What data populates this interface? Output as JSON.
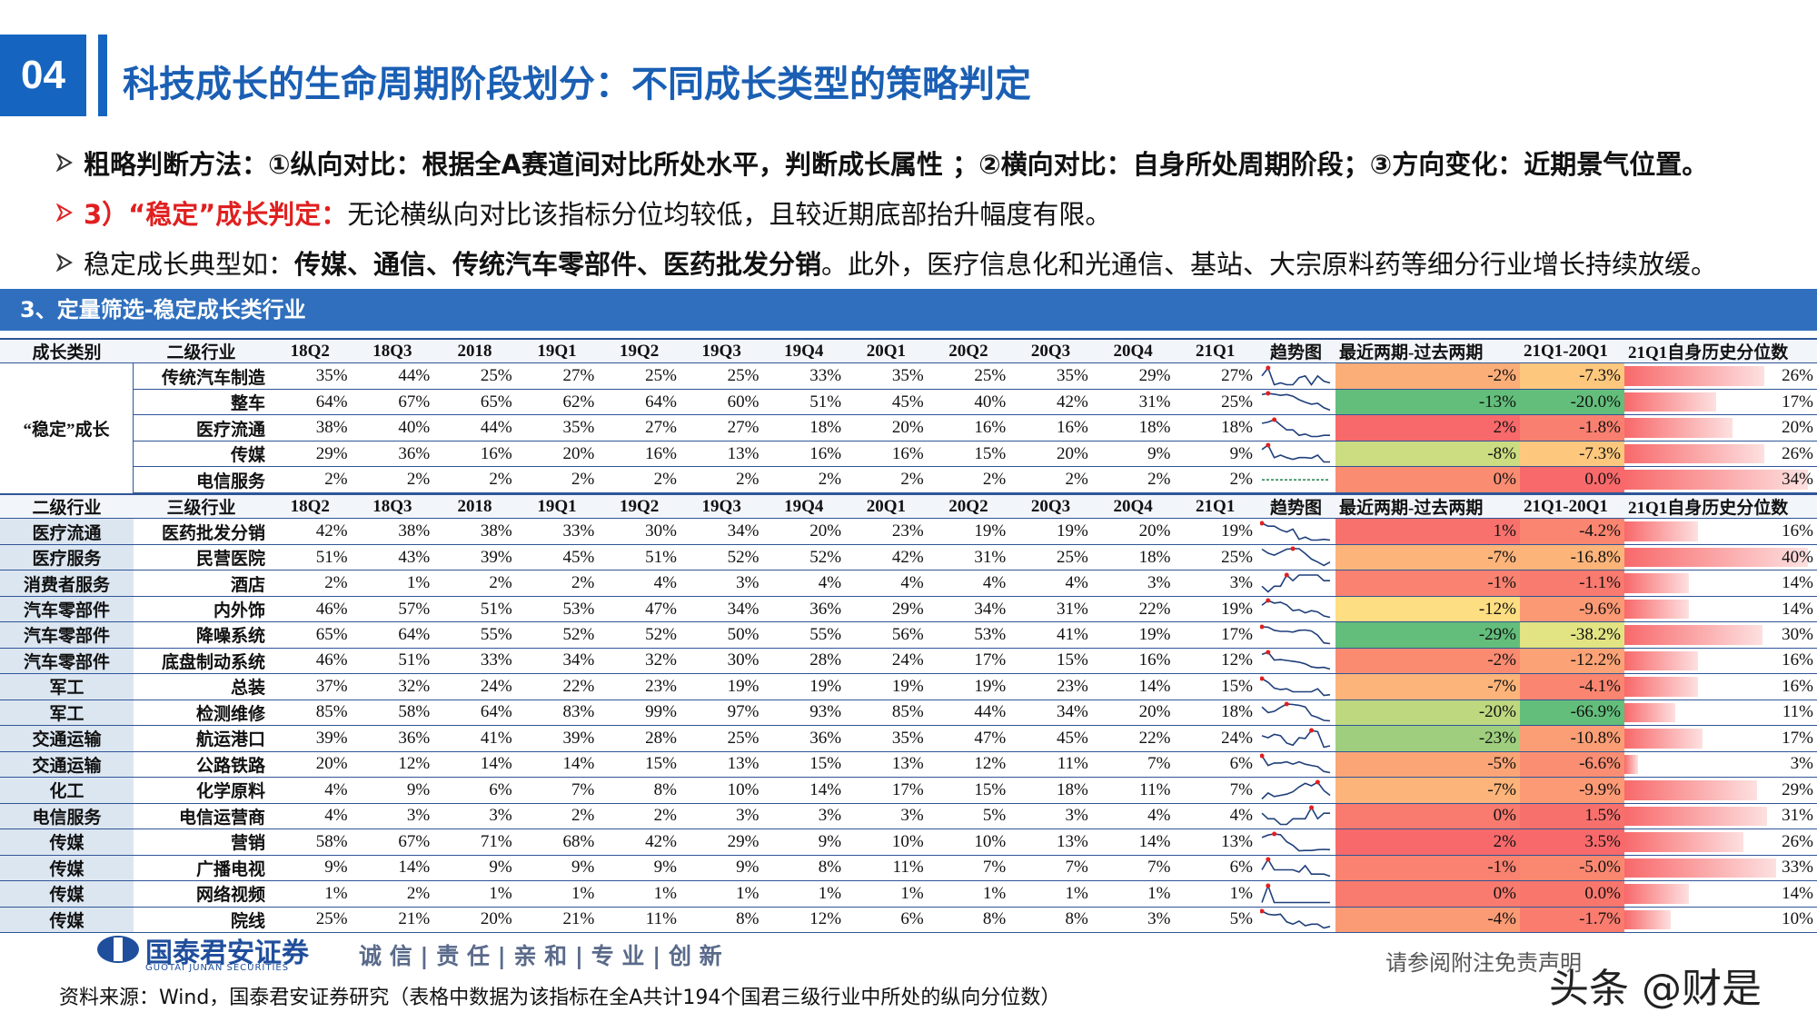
{
  "header": {
    "number": "04",
    "title": "科技成长的生命周期阶段划分：不同成长类型的策略判定"
  },
  "bullets": [
    {
      "text": "粗略判断方法：①纵向对比：根据全A赛道间对比所处水平，判断成长属性 ；②横向对比：自身所处周期阶段；③方向变化：近期景气位置。"
    },
    {
      "label": "3）“稳定”成长判定：",
      "text": "无论横纵向对比该指标分位均较低，且较近期底部抬升幅度有限。"
    },
    {
      "text": "稳定成长典型如：",
      "bold": "传媒、通信、传统汽车零部件、医药批发分销",
      "rest": "。此外，医疗信息化和光通信、基站、大宗原料药等细分行业增长持续放缓。"
    }
  ],
  "section": "3、定量筛选-稳定成长类行业",
  "table1": {
    "columns": [
      "成长类别",
      "二级行业",
      "18Q2",
      "18Q3",
      "2018",
      "19Q1",
      "19Q2",
      "19Q3",
      "19Q4",
      "20Q1",
      "20Q2",
      "20Q3",
      "20Q4",
      "21Q1",
      "趋势图",
      "最近两期-过去两期",
      "21Q1-20Q1",
      "21Q1自身历史分位数"
    ],
    "group": "“稳定”成长",
    "rows": [
      {
        "industry": "传统汽车制造",
        "cells": [
          "35%",
          "44%",
          "25%",
          "27%",
          "25%",
          "25%",
          "33%",
          "35%",
          "25%",
          "35%",
          "29%",
          "27%"
        ],
        "recent": "-2%",
        "yoy": "-7.3%",
        "pct": "26%"
      },
      {
        "industry": "整车",
        "cells": [
          "64%",
          "67%",
          "65%",
          "62%",
          "64%",
          "60%",
          "51%",
          "45%",
          "40%",
          "42%",
          "31%",
          "25%"
        ],
        "recent": "-13%",
        "yoy": "-20.0%",
        "pct": "17%"
      },
      {
        "industry": "医疗流通",
        "cells": [
          "38%",
          "40%",
          "44%",
          "35%",
          "27%",
          "27%",
          "18%",
          "20%",
          "16%",
          "16%",
          "18%",
          "18%"
        ],
        "recent": "2%",
        "yoy": "-1.8%",
        "pct": "20%"
      },
      {
        "industry": "传媒",
        "cells": [
          "29%",
          "36%",
          "16%",
          "20%",
          "16%",
          "13%",
          "16%",
          "16%",
          "15%",
          "20%",
          "9%",
          "9%"
        ],
        "recent": "-8%",
        "yoy": "-7.3%",
        "pct": "26%"
      },
      {
        "industry": "电信服务",
        "cells": [
          "2%",
          "2%",
          "2%",
          "2%",
          "2%",
          "2%",
          "2%",
          "2%",
          "2%",
          "2%",
          "2%",
          "2%"
        ],
        "recent": "0%",
        "yoy": "0.0%",
        "pct": "34%"
      }
    ]
  },
  "table2": {
    "columns": [
      "二级行业",
      "三级行业",
      "18Q2",
      "18Q3",
      "2018",
      "19Q1",
      "19Q2",
      "19Q3",
      "19Q4",
      "20Q1",
      "20Q2",
      "20Q3",
      "20Q4",
      "21Q1",
      "趋势图",
      "最近两期-过去两期",
      "21Q1-20Q1",
      "21Q1自身历史分位数"
    ],
    "rows": [
      {
        "l2": "医疗流通",
        "l3": "医药批发分销",
        "cells": [
          "42%",
          "38%",
          "38%",
          "33%",
          "30%",
          "34%",
          "20%",
          "23%",
          "19%",
          "19%",
          "20%",
          "19%"
        ],
        "recent": "1%",
        "yoy": "-4.2%",
        "pct": "16%"
      },
      {
        "l2": "医疗服务",
        "l3": "民营医院",
        "cells": [
          "51%",
          "43%",
          "39%",
          "45%",
          "51%",
          "52%",
          "52%",
          "42%",
          "31%",
          "25%",
          "18%",
          "25%"
        ],
        "recent": "-7%",
        "yoy": "-16.8%",
        "pct": "40%"
      },
      {
        "l2": "消费者服务",
        "l3": "酒店",
        "cells": [
          "2%",
          "1%",
          "2%",
          "2%",
          "4%",
          "3%",
          "4%",
          "4%",
          "4%",
          "4%",
          "3%",
          "3%"
        ],
        "recent": "-1%",
        "yoy": "-1.1%",
        "pct": "14%"
      },
      {
        "l2": "汽车零部件",
        "l3": "内外饰",
        "cells": [
          "46%",
          "57%",
          "51%",
          "53%",
          "47%",
          "34%",
          "36%",
          "29%",
          "34%",
          "31%",
          "22%",
          "19%"
        ],
        "recent": "-12%",
        "yoy": "-9.6%",
        "pct": "14%"
      },
      {
        "l2": "汽车零部件",
        "l3": "降噪系统",
        "cells": [
          "65%",
          "64%",
          "55%",
          "52%",
          "52%",
          "50%",
          "55%",
          "56%",
          "53%",
          "41%",
          "19%",
          "17%"
        ],
        "recent": "-29%",
        "yoy": "-38.2%",
        "pct": "30%"
      },
      {
        "l2": "汽车零部件",
        "l3": "底盘制动系统",
        "cells": [
          "46%",
          "51%",
          "33%",
          "34%",
          "32%",
          "30%",
          "28%",
          "24%",
          "17%",
          "15%",
          "16%",
          "12%"
        ],
        "recent": "-2%",
        "yoy": "-12.2%",
        "pct": "16%"
      },
      {
        "l2": "军工",
        "l3": "总装",
        "cells": [
          "37%",
          "32%",
          "24%",
          "22%",
          "23%",
          "19%",
          "19%",
          "19%",
          "19%",
          "23%",
          "14%",
          "15%"
        ],
        "recent": "-7%",
        "yoy": "-4.1%",
        "pct": "16%"
      },
      {
        "l2": "军工",
        "l3": "检测维修",
        "cells": [
          "85%",
          "58%",
          "64%",
          "83%",
          "99%",
          "97%",
          "93%",
          "85%",
          "44%",
          "34%",
          "20%",
          "18%"
        ],
        "recent": "-20%",
        "yoy": "-66.9%",
        "pct": "11%"
      },
      {
        "l2": "交通运输",
        "l3": "航运港口",
        "cells": [
          "39%",
          "36%",
          "41%",
          "39%",
          "28%",
          "25%",
          "36%",
          "35%",
          "47%",
          "45%",
          "22%",
          "24%"
        ],
        "recent": "-23%",
        "yoy": "-10.8%",
        "pct": "17%"
      },
      {
        "l2": "交通运输",
        "l3": "公路铁路",
        "cells": [
          "20%",
          "12%",
          "14%",
          "14%",
          "15%",
          "13%",
          "15%",
          "13%",
          "12%",
          "11%",
          "7%",
          "6%"
        ],
        "recent": "-5%",
        "yoy": "-6.6%",
        "pct": "3%"
      },
      {
        "l2": "化工",
        "l3": "化学原料",
        "cells": [
          "4%",
          "9%",
          "6%",
          "7%",
          "8%",
          "10%",
          "14%",
          "17%",
          "15%",
          "18%",
          "11%",
          "7%"
        ],
        "recent": "-7%",
        "yoy": "-9.9%",
        "pct": "29%"
      },
      {
        "l2": "电信服务",
        "l3": "电信运营商",
        "cells": [
          "4%",
          "3%",
          "3%",
          "2%",
          "2%",
          "3%",
          "3%",
          "3%",
          "5%",
          "3%",
          "4%",
          "4%"
        ],
        "recent": "0%",
        "yoy": "1.5%",
        "pct": "31%"
      },
      {
        "l2": "传媒",
        "l3": "营销",
        "cells": [
          "58%",
          "67%",
          "71%",
          "68%",
          "42%",
          "29%",
          "9%",
          "10%",
          "10%",
          "13%",
          "14%",
          "13%"
        ],
        "recent": "2%",
        "yoy": "3.5%",
        "pct": "26%"
      },
      {
        "l2": "传媒",
        "l3": "广播电视",
        "cells": [
          "9%",
          "14%",
          "9%",
          "9%",
          "9%",
          "9%",
          "8%",
          "11%",
          "7%",
          "7%",
          "7%",
          "6%"
        ],
        "recent": "-1%",
        "yoy": "-5.0%",
        "pct": "33%"
      },
      {
        "l2": "传媒",
        "l3": "网络视频",
        "cells": [
          "1%",
          "2%",
          "1%",
          "1%",
          "1%",
          "1%",
          "1%",
          "1%",
          "1%",
          "1%",
          "1%",
          "1%"
        ],
        "recent": "0%",
        "yoy": "0.0%",
        "pct": "14%"
      },
      {
        "l2": "传媒",
        "l3": "院线",
        "cells": [
          "25%",
          "21%",
          "20%",
          "21%",
          "11%",
          "8%",
          "12%",
          "6%",
          "8%",
          "8%",
          "3%",
          "5%"
        ],
        "recent": "-4%",
        "yoy": "-1.7%",
        "pct": "10%"
      }
    ]
  },
  "footer": {
    "company": "国泰君安证券",
    "company_en": "GUOTAI JUNAN SECURITIES",
    "slogan": "诚 信 | 责 任 | 亲 和 | 专 业 | 创 新",
    "disclaimer": "请参阅附注免责声明",
    "watermark": "头条 @财是",
    "source": "资料来源：Wind，国泰君安证券研究（表格中数据为该指标在全A共计194个国君三级行业中所处的纵向分位数）"
  }
}
